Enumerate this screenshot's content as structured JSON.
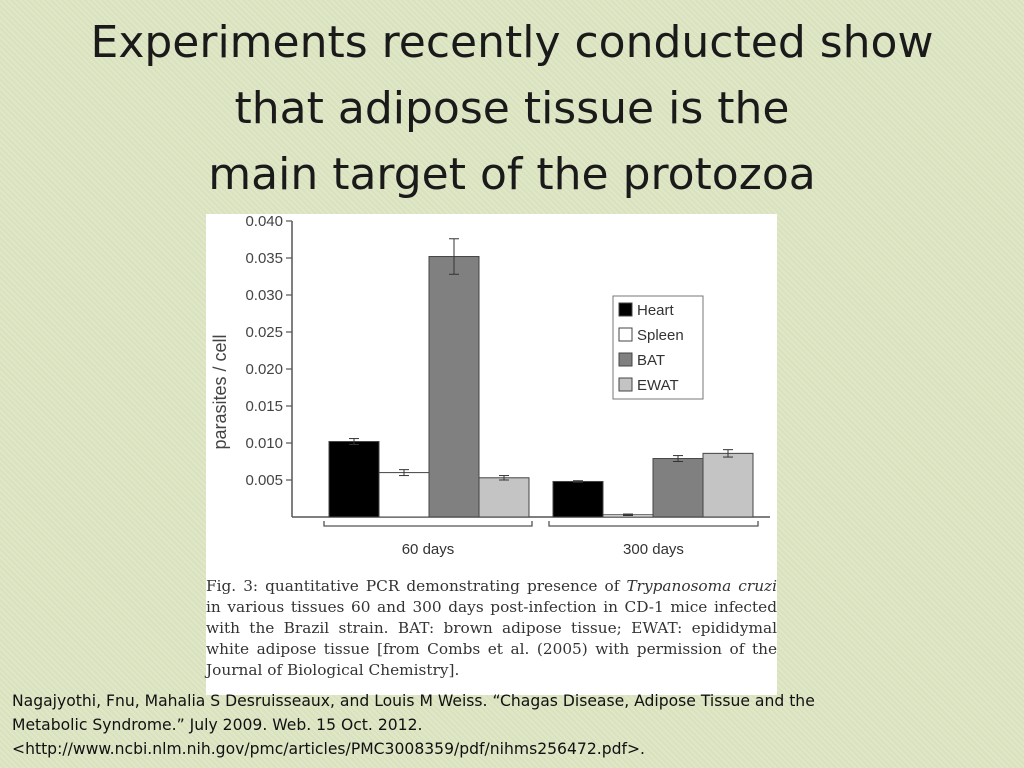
{
  "slide": {
    "title_lines": [
      "Experiments recently conducted show",
      "that adipose tissue is the",
      "main target of the protozoa"
    ]
  },
  "figure": {
    "caption": {
      "prefix": "Fig. 3: quantitative PCR demonstrating presence of ",
      "species": "Trypanosoma cruzi",
      "suffix": " in various tissues 60 and 300 days post-infection in CD-1 mice infected with the Brazil strain. BAT: brown adipose tissue; EWAT: epididymal white adipose tissue [from Combs et al. (2005) with permission of the Journal of Biological Chemistry]."
    }
  },
  "citation": {
    "lines": [
      "Nagajyothi, Fnu, Mahalia S Desruisseaux, and Louis M Weiss. “Chagas Disease, Adipose Tissue and the",
      "Metabolic Syndrome.” July 2009. Web. 15 Oct. 2012.",
      "<http://www.ncbi.nlm.nih.gov/pmc/articles/PMC3008359/pdf/nihms256472.pdf>."
    ]
  },
  "chart_data": {
    "type": "bar",
    "title": "",
    "ylabel": "parasites / cell",
    "xlabel": "",
    "ylim": [
      0,
      0.04
    ],
    "yticks": [
      "0.040",
      "0.035",
      "0.030",
      "0.025",
      "0.020",
      "0.015",
      "0.010",
      "0.005"
    ],
    "categories": [
      "60 days",
      "300 days"
    ],
    "series": [
      {
        "name": "Heart",
        "color": "#000000",
        "values": [
          0.0102,
          0.0048
        ],
        "errors": [
          0.0004,
          0.0001
        ]
      },
      {
        "name": "Spleen",
        "color": "#ffffff",
        "values": [
          0.006,
          0.0003
        ],
        "errors": [
          0.0004,
          0.0001
        ]
      },
      {
        "name": "BAT",
        "color": "#808080",
        "values": [
          0.0352,
          0.0079
        ],
        "errors": [
          0.0024,
          0.0004
        ]
      },
      {
        "name": "EWAT",
        "color": "#c4c4c4",
        "values": [
          0.0053,
          0.0086
        ],
        "errors": [
          0.0003,
          0.0005
        ]
      }
    ],
    "legend": "right",
    "grid": false
  }
}
